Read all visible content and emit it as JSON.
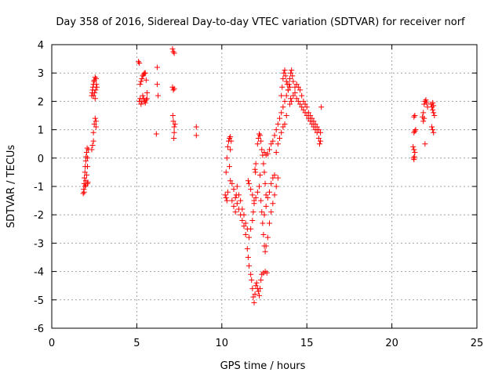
{
  "chart_data": {
    "type": "scatter",
    "title": "Day 358 of 2016, Sidereal Day-to-day VTEC variation (SDTVAR) for receiver norf",
    "xlabel": "GPS time / hours",
    "ylabel": "SDTVAR / TECUs",
    "xlim": [
      0,
      25
    ],
    "ylim": [
      -6,
      4
    ],
    "xticks": [
      0,
      5,
      10,
      15,
      20,
      25
    ],
    "yticks": [
      -6,
      -5,
      -4,
      -3,
      -2,
      -1,
      0,
      1,
      2,
      3,
      4
    ],
    "grid": true,
    "marker": "+",
    "color": "#ff0000",
    "series": [
      {
        "name": "SDTVAR",
        "points": [
          [
            1.85,
            -1.25
          ],
          [
            1.88,
            -1.1
          ],
          [
            1.9,
            -0.9
          ],
          [
            1.92,
            -0.7
          ],
          [
            1.95,
            -0.5
          ],
          [
            1.97,
            -0.3
          ],
          [
            2.0,
            -0.1
          ],
          [
            2.02,
            0.05
          ],
          [
            2.05,
            0.2
          ],
          [
            2.08,
            0.35
          ],
          [
            1.9,
            -1.2
          ],
          [
            1.95,
            -1.0
          ],
          [
            2.0,
            -0.8
          ],
          [
            2.05,
            -0.6
          ],
          [
            2.1,
            -0.3
          ],
          [
            2.1,
            0.0
          ],
          [
            2.15,
            0.3
          ],
          [
            2.0,
            -0.95
          ],
          [
            2.1,
            -0.9
          ],
          [
            2.12,
            -0.85
          ],
          [
            2.35,
            0.3
          ],
          [
            2.4,
            0.45
          ],
          [
            2.45,
            0.6
          ],
          [
            2.45,
            0.9
          ],
          [
            2.5,
            1.2
          ],
          [
            2.55,
            1.4
          ],
          [
            2.6,
            1.3
          ],
          [
            2.6,
            1.1
          ],
          [
            2.35,
            2.2
          ],
          [
            2.38,
            2.3
          ],
          [
            2.4,
            2.4
          ],
          [
            2.42,
            2.5
          ],
          [
            2.45,
            2.6
          ],
          [
            2.48,
            2.7
          ],
          [
            2.5,
            2.75
          ],
          [
            2.55,
            2.85
          ],
          [
            2.6,
            2.8
          ],
          [
            2.62,
            2.6
          ],
          [
            2.65,
            2.5
          ],
          [
            2.58,
            2.4
          ],
          [
            2.52,
            2.3
          ],
          [
            2.45,
            2.2
          ],
          [
            2.55,
            2.1
          ],
          [
            5.1,
            3.4
          ],
          [
            5.15,
            3.35
          ],
          [
            5.2,
            2.6
          ],
          [
            5.25,
            2.7
          ],
          [
            5.3,
            2.8
          ],
          [
            5.35,
            2.9
          ],
          [
            5.4,
            2.95
          ],
          [
            5.45,
            3.0
          ],
          [
            5.5,
            3.0
          ],
          [
            5.55,
            2.75
          ],
          [
            5.15,
            2.0
          ],
          [
            5.2,
            2.1
          ],
          [
            5.25,
            1.9
          ],
          [
            5.3,
            2.0
          ],
          [
            5.35,
            2.2
          ],
          [
            5.4,
            2.1
          ],
          [
            5.45,
            2.0
          ],
          [
            5.5,
            1.95
          ],
          [
            5.55,
            2.05
          ],
          [
            5.6,
            2.1
          ],
          [
            5.6,
            2.3
          ],
          [
            6.2,
            3.2
          ],
          [
            6.2,
            2.6
          ],
          [
            6.25,
            2.2
          ],
          [
            6.15,
            0.85
          ],
          [
            7.1,
            3.85
          ],
          [
            7.15,
            3.75
          ],
          [
            7.2,
            3.7
          ],
          [
            7.1,
            2.5
          ],
          [
            7.15,
            2.4
          ],
          [
            7.2,
            2.45
          ],
          [
            7.12,
            1.5
          ],
          [
            7.15,
            1.3
          ],
          [
            7.2,
            1.1
          ],
          [
            7.2,
            0.9
          ],
          [
            7.25,
            1.2
          ],
          [
            7.18,
            0.7
          ],
          [
            8.5,
            1.1
          ],
          [
            8.5,
            0.8
          ],
          [
            10.2,
            -1.3
          ],
          [
            10.25,
            -1.4
          ],
          [
            10.3,
            -1.5
          ],
          [
            10.35,
            -1.2
          ],
          [
            10.25,
            -0.5
          ],
          [
            10.3,
            0.0
          ],
          [
            10.35,
            0.4
          ],
          [
            10.4,
            0.6
          ],
          [
            10.45,
            0.7
          ],
          [
            10.5,
            0.75
          ],
          [
            10.55,
            0.6
          ],
          [
            10.5,
            0.3
          ],
          [
            10.45,
            -0.3
          ],
          [
            10.5,
            -0.8
          ],
          [
            10.6,
            -0.9
          ],
          [
            10.7,
            -1.1
          ],
          [
            10.8,
            -1.4
          ],
          [
            10.9,
            -1.6
          ],
          [
            11.0,
            -1.8
          ],
          [
            11.1,
            -2.0
          ],
          [
            11.2,
            -2.2
          ],
          [
            11.3,
            -2.4
          ],
          [
            11.4,
            -2.7
          ],
          [
            11.5,
            -3.2
          ],
          [
            11.55,
            -3.5
          ],
          [
            11.6,
            -3.8
          ],
          [
            11.7,
            -4.1
          ],
          [
            11.75,
            -4.3
          ],
          [
            11.8,
            -4.6
          ],
          [
            11.85,
            -4.9
          ],
          [
            11.9,
            -5.1
          ],
          [
            11.95,
            -4.8
          ],
          [
            12.0,
            -4.5
          ],
          [
            12.05,
            -4.4
          ],
          [
            12.1,
            -4.6
          ],
          [
            12.15,
            -4.7
          ],
          [
            12.2,
            -4.85
          ],
          [
            12.25,
            -4.6
          ],
          [
            12.3,
            -4.3
          ],
          [
            12.35,
            -4.1
          ],
          [
            12.45,
            -4.05
          ],
          [
            12.55,
            -4.0
          ],
          [
            12.65,
            -4.05
          ],
          [
            10.6,
            -1.5
          ],
          [
            10.7,
            -1.7
          ],
          [
            10.8,
            -1.9
          ],
          [
            10.85,
            -1.3
          ],
          [
            10.9,
            -1.0
          ],
          [
            11.0,
            -1.3
          ],
          [
            11.1,
            -1.5
          ],
          [
            11.2,
            -1.8
          ],
          [
            11.3,
            -2.0
          ],
          [
            11.4,
            -2.3
          ],
          [
            11.5,
            -2.5
          ],
          [
            11.6,
            -2.8
          ],
          [
            11.7,
            -2.5
          ],
          [
            11.8,
            -2.2
          ],
          [
            11.85,
            -1.9
          ],
          [
            11.9,
            -1.6
          ],
          [
            11.55,
            -0.8
          ],
          [
            11.6,
            -0.9
          ],
          [
            11.7,
            -1.1
          ],
          [
            11.8,
            -1.3
          ],
          [
            11.9,
            -1.5
          ],
          [
            12.0,
            -1.4
          ],
          [
            12.1,
            -1.2
          ],
          [
            12.2,
            -1.0
          ],
          [
            12.25,
            -0.6
          ],
          [
            11.95,
            -0.4
          ],
          [
            12.0,
            -0.2
          ],
          [
            11.98,
            -0.5
          ],
          [
            12.1,
            0.5
          ],
          [
            12.15,
            0.7
          ],
          [
            12.2,
            0.85
          ],
          [
            12.25,
            0.8
          ],
          [
            12.3,
            0.6
          ],
          [
            12.35,
            0.3
          ],
          [
            12.4,
            0.1
          ],
          [
            12.45,
            -0.2
          ],
          [
            12.5,
            -0.5
          ],
          [
            12.55,
            -0.9
          ],
          [
            12.6,
            -1.3
          ],
          [
            12.3,
            -1.5
          ],
          [
            12.35,
            -1.9
          ],
          [
            12.4,
            -2.3
          ],
          [
            12.45,
            -2.7
          ],
          [
            12.5,
            -3.1
          ],
          [
            12.55,
            -3.3
          ],
          [
            12.6,
            -3.1
          ],
          [
            12.7,
            -2.8
          ],
          [
            12.8,
            -2.3
          ],
          [
            12.9,
            -1.9
          ],
          [
            13.0,
            -1.6
          ],
          [
            13.1,
            -1.3
          ],
          [
            13.2,
            -1.0
          ],
          [
            13.3,
            -0.7
          ],
          [
            12.5,
            -2.0
          ],
          [
            12.6,
            -1.7
          ],
          [
            12.7,
            -1.4
          ],
          [
            12.8,
            -1.2
          ],
          [
            12.9,
            -0.9
          ],
          [
            13.0,
            -0.7
          ],
          [
            13.1,
            -0.6
          ],
          [
            12.5,
            0.2
          ],
          [
            12.6,
            0.1
          ],
          [
            12.7,
            0.15
          ],
          [
            12.8,
            0.3
          ],
          [
            12.9,
            0.5
          ],
          [
            13.0,
            0.6
          ],
          [
            13.1,
            0.8
          ],
          [
            13.2,
            1.0
          ],
          [
            13.3,
            1.2
          ],
          [
            13.4,
            1.4
          ],
          [
            13.5,
            1.6
          ],
          [
            13.6,
            1.8
          ],
          [
            13.7,
            2.0
          ],
          [
            13.8,
            2.2
          ],
          [
            13.9,
            2.4
          ],
          [
            14.0,
            2.5
          ],
          [
            13.2,
            0.2
          ],
          [
            13.3,
            0.5
          ],
          [
            13.4,
            0.7
          ],
          [
            13.5,
            0.9
          ],
          [
            13.6,
            1.1
          ],
          [
            13.7,
            1.2
          ],
          [
            13.8,
            1.5
          ],
          [
            13.5,
            2.2
          ],
          [
            13.55,
            2.5
          ],
          [
            13.6,
            2.8
          ],
          [
            13.65,
            3.0
          ],
          [
            13.7,
            3.1
          ],
          [
            13.75,
            2.9
          ],
          [
            13.8,
            2.7
          ],
          [
            13.85,
            2.6
          ],
          [
            13.9,
            2.4
          ],
          [
            13.95,
            2.6
          ],
          [
            14.0,
            2.8
          ],
          [
            14.05,
            3.0
          ],
          [
            14.1,
            3.1
          ],
          [
            14.15,
            2.9
          ],
          [
            14.2,
            2.7
          ],
          [
            14.3,
            2.5
          ],
          [
            14.4,
            2.6
          ],
          [
            14.0,
            1.9
          ],
          [
            14.05,
            2.1
          ],
          [
            14.1,
            2.0
          ],
          [
            14.2,
            2.2
          ],
          [
            14.3,
            2.3
          ],
          [
            14.4,
            2.1
          ],
          [
            14.5,
            2.0
          ],
          [
            14.6,
            1.9
          ],
          [
            14.7,
            1.8
          ],
          [
            14.8,
            1.7
          ],
          [
            14.9,
            1.6
          ],
          [
            15.0,
            1.5
          ],
          [
            15.1,
            1.4
          ],
          [
            15.2,
            1.3
          ],
          [
            15.3,
            1.2
          ],
          [
            15.4,
            1.1
          ],
          [
            15.5,
            1.0
          ],
          [
            15.6,
            0.9
          ],
          [
            15.7,
            0.7
          ],
          [
            15.75,
            0.5
          ],
          [
            14.5,
            2.5
          ],
          [
            14.6,
            2.4
          ],
          [
            14.7,
            2.2
          ],
          [
            14.8,
            2.0
          ],
          [
            14.9,
            1.9
          ],
          [
            15.0,
            1.8
          ],
          [
            15.1,
            1.6
          ],
          [
            15.2,
            1.5
          ],
          [
            15.3,
            1.4
          ],
          [
            15.4,
            1.3
          ],
          [
            15.5,
            1.2
          ],
          [
            15.6,
            1.1
          ],
          [
            15.7,
            1.0
          ],
          [
            15.8,
            0.9
          ],
          [
            15.8,
            0.6
          ],
          [
            15.85,
            1.8
          ],
          [
            21.3,
            1.45
          ],
          [
            21.35,
            1.5
          ],
          [
            21.3,
            0.9
          ],
          [
            21.35,
            0.95
          ],
          [
            21.25,
            0.4
          ],
          [
            21.3,
            0.3
          ],
          [
            21.35,
            0.2
          ],
          [
            21.28,
            0.0
          ],
          [
            21.32,
            0.05
          ],
          [
            21.3,
            -0.05
          ],
          [
            21.4,
            1.0
          ],
          [
            21.8,
            1.45
          ],
          [
            21.85,
            1.6
          ],
          [
            21.9,
            1.9
          ],
          [
            21.95,
            2.0
          ],
          [
            22.0,
            2.05
          ],
          [
            22.05,
            1.95
          ],
          [
            22.1,
            1.8
          ],
          [
            21.85,
            1.3
          ],
          [
            21.9,
            1.4
          ],
          [
            21.95,
            0.5
          ],
          [
            22.3,
            1.9
          ],
          [
            22.35,
            1.8
          ],
          [
            22.4,
            1.7
          ],
          [
            22.45,
            1.6
          ],
          [
            22.5,
            1.5
          ],
          [
            22.4,
            1.95
          ],
          [
            22.45,
            1.85
          ],
          [
            22.35,
            1.1
          ],
          [
            22.4,
            1.0
          ],
          [
            22.45,
            0.9
          ]
        ]
      }
    ]
  }
}
